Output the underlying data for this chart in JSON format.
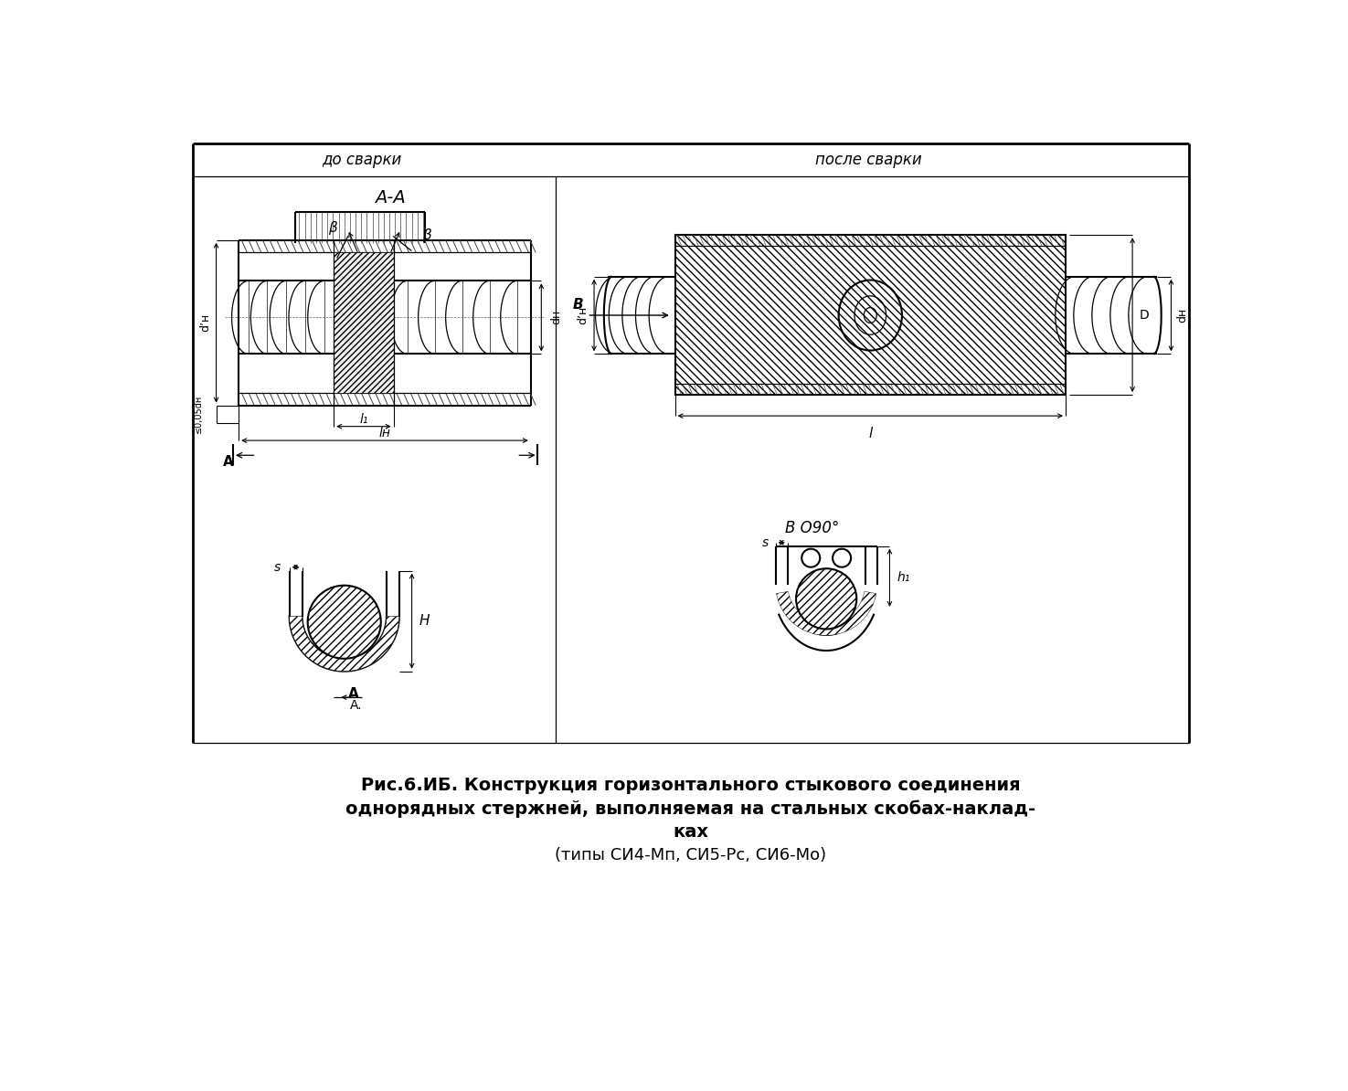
{
  "bg_color": "#ffffff",
  "label_do_svarki": "до сварки",
  "label_posle_svarki": "после сварки",
  "label_AA": "A-A",
  "label_B_90": "B Ο90°",
  "label_B": "B",
  "label_beta": "β",
  "label_dh_prime": "d’н",
  "label_dh": "dн",
  "label_l1": "l₁",
  "label_lh": "lн",
  "label_l": "l",
  "label_s": "s",
  "label_H": "H",
  "label_h1": "h₁",
  "label_D": "D",
  "label_005dh": "≤0,05dн",
  "label_A": "A",
  "title_line1": "Рис.6.ИБ. Конструкция горизонтального стыкового соединения",
  "title_line2": "однорядных стержней, выполняемая на стальных скобах-наклад-",
  "title_line3": "ках",
  "title_line4": "(типы СИ4-Мп, СИ5-Рс, СИ6-Мо)"
}
